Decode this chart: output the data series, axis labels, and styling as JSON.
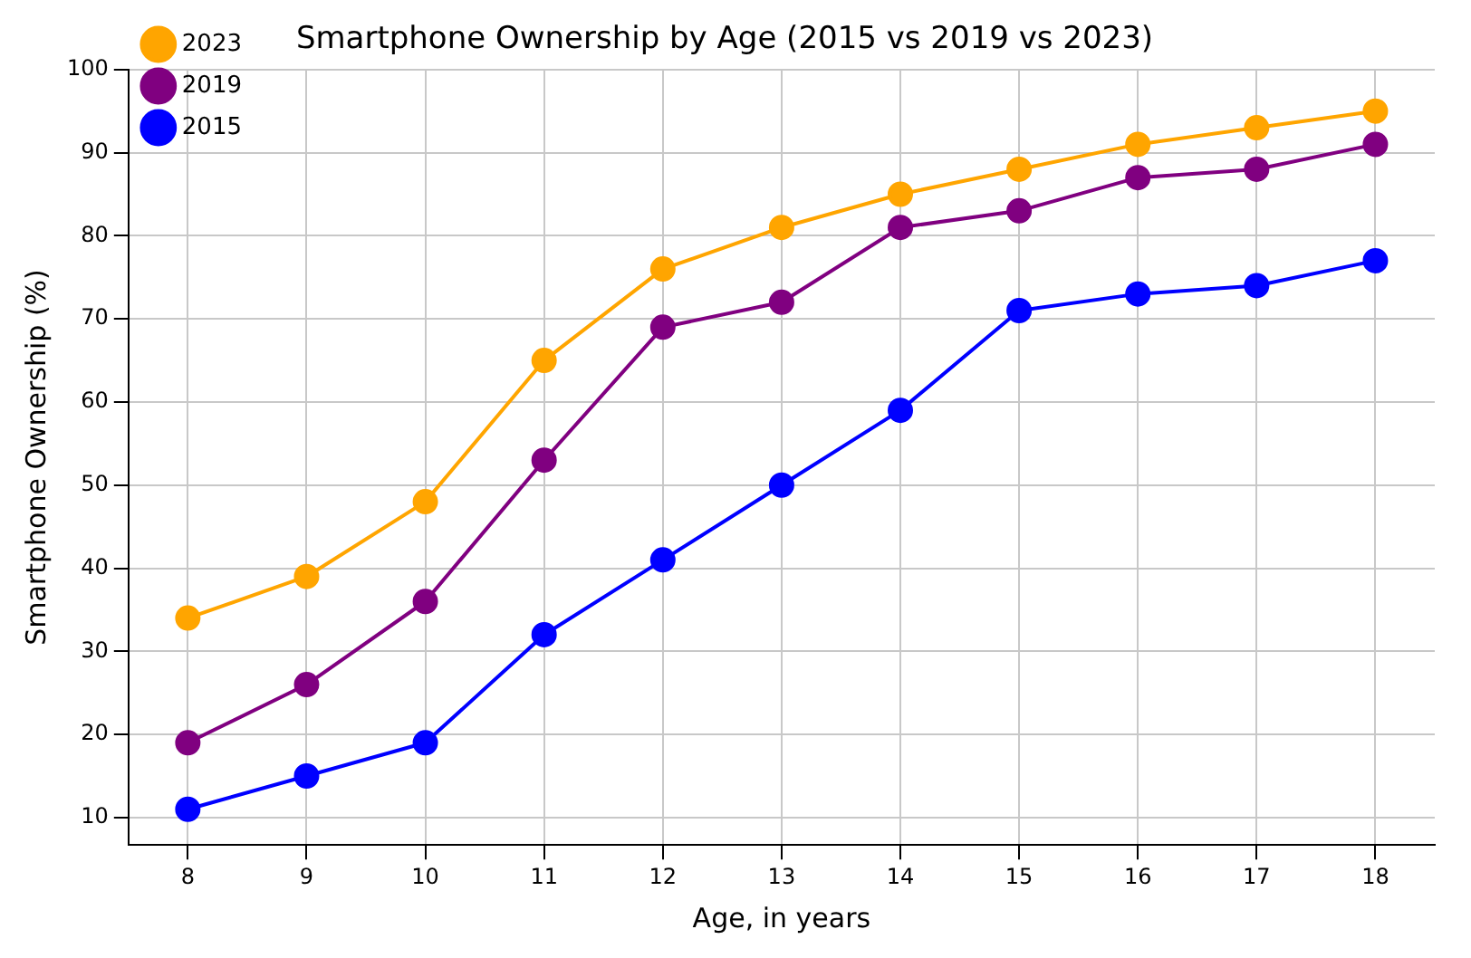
{
  "chart_data": {
    "type": "line",
    "title": "Smartphone Ownership by Age (2015 vs 2019 vs 2023)",
    "xlabel": "Age, in years",
    "ylabel": "Smartphone Ownership (%)",
    "x": [
      8,
      9,
      10,
      11,
      12,
      13,
      14,
      15,
      16,
      17,
      18
    ],
    "series": [
      {
        "name": "2023",
        "color": "#ffa500",
        "values": [
          34,
          39,
          48,
          65,
          76,
          81,
          85,
          88,
          91,
          93,
          95
        ]
      },
      {
        "name": "2019",
        "color": "#800080",
        "values": [
          19,
          26,
          36,
          53,
          69,
          72,
          81,
          83,
          87,
          88,
          91
        ]
      },
      {
        "name": "2015",
        "color": "#0000ff",
        "values": [
          11,
          15,
          19,
          32,
          41,
          50,
          59,
          71,
          73,
          74,
          77
        ]
      }
    ],
    "xlim": [
      7.5,
      18.5
    ],
    "xticks": [
      8,
      9,
      10,
      11,
      12,
      13,
      14,
      15,
      16,
      17,
      18
    ],
    "ylim": [
      6.7,
      100
    ],
    "yticks": [
      10,
      20,
      30,
      40,
      50,
      60,
      70,
      80,
      90,
      100
    ],
    "grid": true,
    "legend": "top left",
    "marker": "circle",
    "line_style": "solid"
  }
}
